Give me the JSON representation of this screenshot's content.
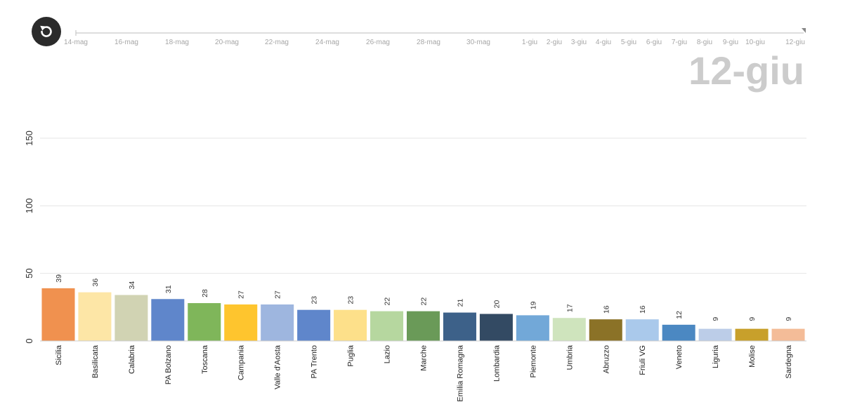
{
  "timeline": {
    "ticks": [
      "14-mag",
      "16-mag",
      "18-mag",
      "20-mag",
      "22-mag",
      "24-mag",
      "26-mag",
      "28-mag",
      "30-mag",
      "1-giu",
      "2-giu",
      "3-giu",
      "4-giu",
      "5-giu",
      "6-giu",
      "7-giu",
      "8-giu",
      "9-giu",
      "10-giu",
      "12-giu"
    ],
    "current_date": "12-giu",
    "replay_icon": "replay-icon"
  },
  "chart_data": {
    "type": "bar",
    "orientation": "vertical",
    "categories": [
      "Sicilia",
      "Basilicata",
      "Calabria",
      "PA Bolzano",
      "Toscana",
      "Campania",
      "Valle d'Aosta",
      "PA Trento",
      "Puglia",
      "Lazio",
      "Marche",
      "Emilia Romagna",
      "Lombardia",
      "Piemonte",
      "Umbria",
      "Abruzzo",
      "Friuli VG",
      "Veneto",
      "Liguria",
      "Molise",
      "Sardegna"
    ],
    "values": [
      39,
      36,
      34,
      31,
      28,
      27,
      27,
      23,
      23,
      22,
      22,
      21,
      20,
      19,
      17,
      16,
      16,
      12,
      9,
      9,
      9
    ],
    "colors": [
      "#f0914f",
      "#fde6a6",
      "#d1d3b3",
      "#5f86cb",
      "#7fb65a",
      "#fec52e",
      "#9eb6df",
      "#5f86cb",
      "#fde08a",
      "#b6d79f",
      "#6a9a58",
      "#3d6189",
      "#334a63",
      "#72a8d8",
      "#cfe4bd",
      "#8b7227",
      "#aac9eb",
      "#4b88c2",
      "#bccde8",
      "#c8a02b",
      "#f4bc98"
    ],
    "yticks": [
      0,
      50,
      100,
      150
    ],
    "ylim": [
      0,
      155
    ],
    "grid": true,
    "title": "",
    "xlabel": "",
    "ylabel": ""
  }
}
